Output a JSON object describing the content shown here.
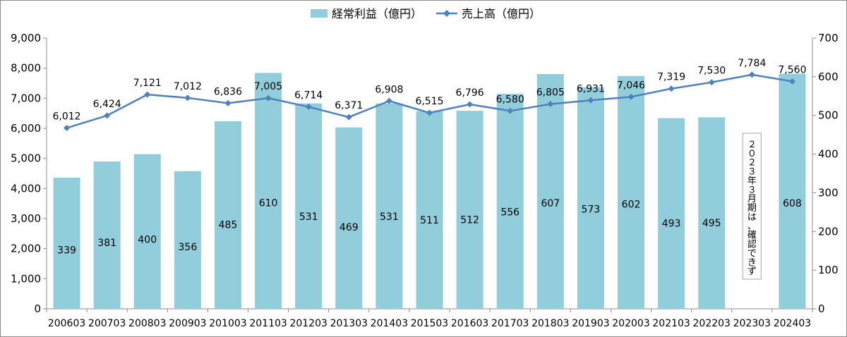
{
  "chart_data": {
    "type": "bar+line",
    "categories": [
      "200603",
      "200703",
      "200803",
      "200903",
      "201003",
      "201103",
      "201203",
      "201303",
      "201403",
      "201503",
      "201603",
      "201703",
      "201803",
      "201903",
      "202003",
      "202103",
      "202203",
      "202303",
      "202403"
    ],
    "series": [
      {
        "name": "経常利益（億円）",
        "type": "bar",
        "axis": "right",
        "color": "#92cddc",
        "values": [
          339,
          381,
          400,
          356,
          485,
          610,
          531,
          469,
          531,
          511,
          512,
          556,
          607,
          573,
          602,
          493,
          495,
          null,
          608
        ]
      },
      {
        "name": "売上高（億円）",
        "type": "line",
        "axis": "left",
        "color": "#4f81bd",
        "values": [
          6012,
          6424,
          7121,
          7012,
          6836,
          7005,
          6714,
          6371,
          6908,
          6515,
          6796,
          6580,
          6805,
          6931,
          7046,
          7319,
          7530,
          7784,
          7560
        ]
      }
    ],
    "left_axis": {
      "min": 0,
      "max": 9000,
      "step": 1000,
      "tick_labels": [
        "0",
        "1,000",
        "2,000",
        "3,000",
        "4,000",
        "5,000",
        "6,000",
        "7,000",
        "8,000",
        "9,000"
      ]
    },
    "right_axis": {
      "min": 0,
      "max": 700,
      "step": 100,
      "tick_labels": [
        "0",
        "100",
        "200",
        "300",
        "400",
        "500",
        "600",
        "700"
      ]
    },
    "legend_position": "top-center",
    "grid": false,
    "annotation": {
      "category": "202303",
      "text": "２０２３年３月期は、確認できず"
    }
  }
}
